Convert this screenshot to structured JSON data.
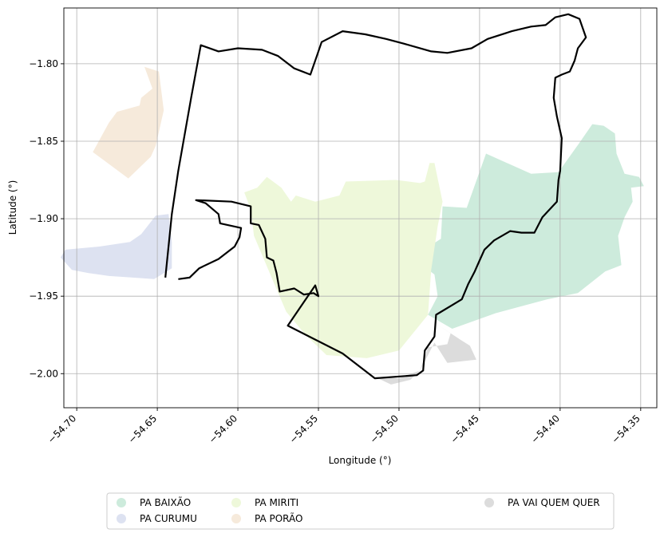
{
  "chart_data": {
    "type": "map",
    "xlabel": "Longitude (°)",
    "ylabel": "Latitude (°)",
    "xlim": [
      -54.708,
      -54.34
    ],
    "ylim": [
      -2.022,
      -1.764
    ],
    "x_ticks": [
      -54.7,
      -54.65,
      -54.6,
      -54.55,
      -54.5,
      -54.45,
      -54.4,
      -54.35
    ],
    "x_tick_labels": [
      "−54.70",
      "−54.65",
      "−54.60",
      "−54.55",
      "−54.50",
      "−54.45",
      "−54.40",
      "−54.35"
    ],
    "y_ticks": [
      -1.8,
      -1.85,
      -1.9,
      -1.95,
      -2.0
    ],
    "y_tick_labels": [
      "−1.80",
      "−1.85",
      "−1.90",
      "−1.95",
      "−2.00"
    ],
    "grid": true,
    "legend_position": "bottom-center",
    "regions": [
      {
        "name": "PA BAIXÃO",
        "color": "#cdebdc",
        "coords": [
          [
            -54.446,
            -1.858
          ],
          [
            -54.418,
            -1.871
          ],
          [
            -54.401,
            -1.87
          ],
          [
            -54.388,
            -1.851
          ],
          [
            -54.38,
            -1.839
          ],
          [
            -54.373,
            -1.84
          ],
          [
            -54.366,
            -1.845
          ],
          [
            -54.365,
            -1.858
          ],
          [
            -54.36,
            -1.871
          ],
          [
            -54.351,
            -1.873
          ],
          [
            -54.348,
            -1.879
          ],
          [
            -54.356,
            -1.88
          ],
          [
            -54.355,
            -1.889
          ],
          [
            -54.36,
            -1.899
          ],
          [
            -54.364,
            -1.911
          ],
          [
            -54.362,
            -1.93
          ],
          [
            -54.372,
            -1.934
          ],
          [
            -54.389,
            -1.948
          ],
          [
            -54.408,
            -1.952
          ],
          [
            -54.44,
            -1.961
          ],
          [
            -54.467,
            -1.971
          ],
          [
            -54.482,
            -1.962
          ],
          [
            -54.476,
            -1.95
          ],
          [
            -54.478,
            -1.936
          ],
          [
            -54.492,
            -1.925
          ],
          [
            -54.474,
            -1.913
          ],
          [
            -54.473,
            -1.892
          ],
          [
            -54.458,
            -1.893
          ]
        ]
      },
      {
        "name": "PA CURUMU",
        "color": "#dde2f1",
        "coords": [
          [
            -54.71,
            -1.925
          ],
          [
            -54.707,
            -1.92
          ],
          [
            -54.686,
            -1.918
          ],
          [
            -54.667,
            -1.915
          ],
          [
            -54.66,
            -1.91
          ],
          [
            -54.651,
            -1.898
          ],
          [
            -54.643,
            -1.897
          ],
          [
            -54.641,
            -1.915
          ],
          [
            -54.641,
            -1.932
          ],
          [
            -54.652,
            -1.939
          ],
          [
            -54.665,
            -1.938
          ],
          [
            -54.68,
            -1.937
          ],
          [
            -54.693,
            -1.935
          ],
          [
            -54.703,
            -1.933
          ]
        ]
      },
      {
        "name": "PA MIRITI",
        "color": "#eef8da",
        "coords": [
          [
            -54.596,
            -1.883
          ],
          [
            -54.588,
            -1.88
          ],
          [
            -54.582,
            -1.873
          ],
          [
            -54.573,
            -1.88
          ],
          [
            -54.567,
            -1.889
          ],
          [
            -54.564,
            -1.885
          ],
          [
            -54.552,
            -1.889
          ],
          [
            -54.537,
            -1.885
          ],
          [
            -54.533,
            -1.876
          ],
          [
            -54.502,
            -1.875
          ],
          [
            -54.487,
            -1.877
          ],
          [
            -54.484,
            -1.876
          ],
          [
            -54.481,
            -1.864
          ],
          [
            -54.478,
            -1.864
          ],
          [
            -54.476,
            -1.874
          ],
          [
            -54.473,
            -1.889
          ],
          [
            -54.476,
            -1.905
          ],
          [
            -54.48,
            -1.933
          ],
          [
            -54.482,
            -1.962
          ],
          [
            -54.5,
            -1.985
          ],
          [
            -54.52,
            -1.99
          ],
          [
            -54.545,
            -1.988
          ],
          [
            -54.558,
            -1.975
          ],
          [
            -54.57,
            -1.96
          ],
          [
            -54.577,
            -1.943
          ],
          [
            -54.59,
            -1.911
          ],
          [
            -54.592,
            -1.894
          ]
        ]
      },
      {
        "name": "PA PORÃO",
        "color": "#f6eadb",
        "coords": [
          [
            -54.69,
            -1.857
          ],
          [
            -54.68,
            -1.838
          ],
          [
            -54.675,
            -1.831
          ],
          [
            -54.661,
            -1.827
          ],
          [
            -54.66,
            -1.822
          ],
          [
            -54.653,
            -1.816
          ],
          [
            -54.658,
            -1.802
          ],
          [
            -54.649,
            -1.805
          ],
          [
            -54.646,
            -1.83
          ],
          [
            -54.651,
            -1.853
          ],
          [
            -54.654,
            -1.86
          ],
          [
            -54.668,
            -1.874
          ]
        ]
      },
      {
        "name": "PA VAI QUEM QUER",
        "color": "#dcdcdc",
        "coords": [
          [
            -54.515,
            -2.002
          ],
          [
            -54.505,
            -2.007
          ],
          [
            -54.493,
            -2.004
          ],
          [
            -54.487,
            -1.998
          ],
          [
            -54.482,
            -1.983
          ],
          [
            -54.47,
            -1.981
          ],
          [
            -54.468,
            -1.974
          ],
          [
            -54.478,
            -1.967
          ],
          [
            -54.462,
            -1.978
          ],
          [
            -54.456,
            -1.982
          ],
          [
            -54.452,
            -1.991
          ],
          [
            -54.47,
            -1.993
          ],
          [
            -54.478,
            -1.98
          ],
          [
            -54.487,
            -1.998
          ],
          [
            -54.5,
            -2.003
          ]
        ]
      }
    ],
    "boundary": [
      [
        -54.637,
        -1.939
      ],
      [
        -54.63,
        -1.938
      ],
      [
        -54.624,
        -1.932
      ],
      [
        -54.612,
        -1.926
      ],
      [
        -54.602,
        -1.918
      ],
      [
        -54.599,
        -1.912
      ],
      [
        -54.598,
        -1.906
      ],
      [
        -54.611,
        -1.903
      ],
      [
        -54.612,
        -1.897
      ],
      [
        -54.62,
        -1.89
      ],
      [
        -54.626,
        -1.888
      ],
      [
        -54.604,
        -1.889
      ],
      [
        -54.592,
        -1.892
      ],
      [
        -54.592,
        -1.903
      ],
      [
        -54.587,
        -1.904
      ],
      [
        -54.583,
        -1.913
      ],
      [
        -54.582,
        -1.925
      ],
      [
        -54.578,
        -1.927
      ],
      [
        -54.576,
        -1.935
      ],
      [
        -54.574,
        -1.947
      ],
      [
        -54.565,
        -1.945
      ],
      [
        -54.559,
        -1.949
      ],
      [
        -54.553,
        -1.948
      ],
      [
        -54.55,
        -1.95
      ],
      [
        -54.552,
        -1.943
      ],
      [
        -54.569,
        -1.969
      ],
      [
        -54.535,
        -1.987
      ],
      [
        -54.515,
        -2.003
      ],
      [
        -54.489,
        -2.001
      ],
      [
        -54.485,
        -1.998
      ],
      [
        -54.484,
        -1.985
      ],
      [
        -54.478,
        -1.976
      ],
      [
        -54.477,
        -1.962
      ],
      [
        -54.461,
        -1.952
      ],
      [
        -54.457,
        -1.942
      ],
      [
        -54.453,
        -1.934
      ],
      [
        -54.45,
        -1.927
      ],
      [
        -54.447,
        -1.92
      ],
      [
        -54.441,
        -1.914
      ],
      [
        -54.431,
        -1.908
      ],
      [
        -54.424,
        -1.909
      ],
      [
        -54.416,
        -1.909
      ],
      [
        -54.411,
        -1.899
      ],
      [
        -54.402,
        -1.889
      ],
      [
        -54.401,
        -1.875
      ],
      [
        -54.4,
        -1.869
      ],
      [
        -54.399,
        -1.848
      ],
      [
        -54.402,
        -1.834
      ],
      [
        -54.404,
        -1.822
      ],
      [
        -54.403,
        -1.809
      ],
      [
        -54.399,
        -1.807
      ],
      [
        -54.394,
        -1.805
      ],
      [
        -54.391,
        -1.798
      ],
      [
        -54.389,
        -1.79
      ],
      [
        -54.384,
        -1.783
      ],
      [
        -54.388,
        -1.771
      ],
      [
        -54.395,
        -1.768
      ],
      [
        -54.403,
        -1.77
      ],
      [
        -54.409,
        -1.775
      ],
      [
        -54.418,
        -1.776
      ],
      [
        -54.43,
        -1.779
      ],
      [
        -54.445,
        -1.784
      ],
      [
        -54.455,
        -1.79
      ],
      [
        -54.47,
        -1.793
      ],
      [
        -54.48,
        -1.792
      ],
      [
        -54.497,
        -1.787
      ],
      [
        -54.508,
        -1.784
      ],
      [
        -54.521,
        -1.781
      ],
      [
        -54.535,
        -1.779
      ],
      [
        -54.548,
        -1.786
      ],
      [
        -54.551,
        -1.795
      ],
      [
        -54.555,
        -1.807
      ],
      [
        -54.565,
        -1.803
      ],
      [
        -54.575,
        -1.795
      ],
      [
        -54.585,
        -1.791
      ],
      [
        -54.6,
        -1.79
      ],
      [
        -54.612,
        -1.792
      ],
      [
        -54.623,
        -1.788
      ],
      [
        -54.629,
        -1.822
      ],
      [
        -54.637,
        -1.869
      ],
      [
        -54.641,
        -1.897
      ],
      [
        -54.645,
        -1.938
      ]
    ],
    "legend": [
      {
        "label": "PA BAIXÃO",
        "color": "#cdebdc"
      },
      {
        "label": "PA CURUMU",
        "color": "#dde2f1"
      },
      {
        "label": "PA MIRITI",
        "color": "#eef8da"
      },
      {
        "label": "PA PORÃO",
        "color": "#f6eadb"
      },
      {
        "label": "PA VAI QUEM QUER",
        "color": "#dcdcdc"
      }
    ]
  }
}
